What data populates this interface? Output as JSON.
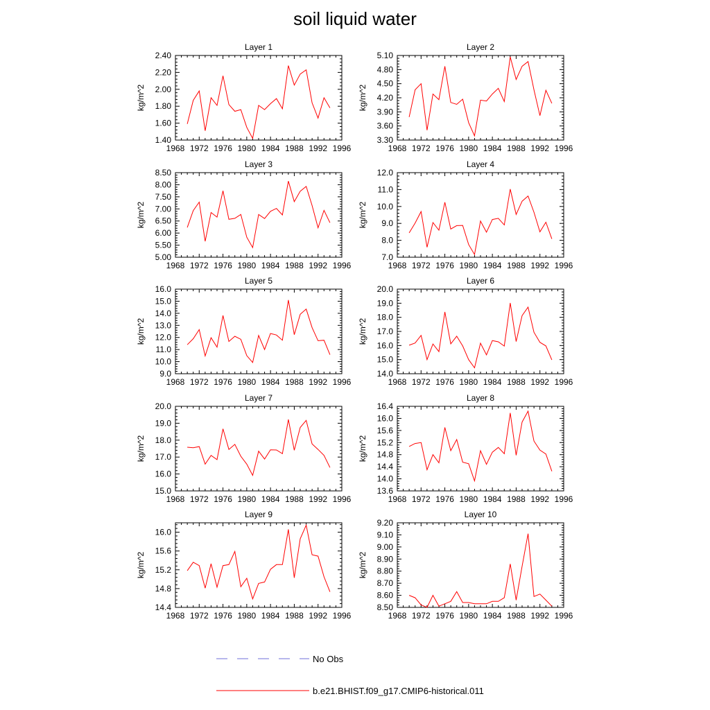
{
  "title": "soil liquid water",
  "legend": {
    "items": [
      {
        "label": "No Obs",
        "style": "dashed",
        "color": "#6f6fd8"
      },
      {
        "label": "b.e21.BHIST.f09_g17.CMIP6-historical.011",
        "style": "solid",
        "color": "#ff0000"
      }
    ]
  },
  "chart_data": [
    {
      "type": "line",
      "title": "Layer 1",
      "ylabel": "kg/m^2",
      "xlim": [
        1968,
        1996
      ],
      "ylim": [
        1.4,
        2.4
      ],
      "xticks": [
        "1968",
        "1972",
        "1976",
        "1980",
        "1984",
        "1988",
        "1992",
        "1996"
      ],
      "yticks": [
        "1.40",
        "1.60",
        "1.80",
        "2.00",
        "2.20",
        "2.40"
      ],
      "series": [
        {
          "x": [
            1970,
            1971,
            1972,
            1973,
            1974,
            1975,
            1976,
            1977,
            1978,
            1979,
            1980,
            1981,
            1982,
            1983,
            1984,
            1985,
            1986,
            1987,
            1988,
            1989,
            1990,
            1991,
            1992,
            1993,
            1994
          ],
          "values": [
            1.59,
            1.87,
            1.98,
            1.51,
            1.9,
            1.81,
            2.16,
            1.82,
            1.74,
            1.76,
            1.55,
            1.42,
            1.81,
            1.76,
            1.83,
            1.89,
            1.77,
            2.28,
            2.05,
            2.18,
            2.23,
            1.84,
            1.66,
            1.9,
            1.78
          ]
        }
      ]
    },
    {
      "type": "line",
      "title": "Layer 2",
      "ylabel": "kg/m^2",
      "xlim": [
        1968,
        1996
      ],
      "ylim": [
        3.3,
        5.1
      ],
      "xticks": [
        "1968",
        "1972",
        "1976",
        "1980",
        "1984",
        "1988",
        "1992",
        "1996"
      ],
      "yticks": [
        "3.30",
        "3.60",
        "3.90",
        "4.20",
        "4.50",
        "4.80",
        "5.10"
      ],
      "series": [
        {
          "x": [
            1970,
            1971,
            1972,
            1973,
            1974,
            1975,
            1976,
            1977,
            1978,
            1979,
            1980,
            1981,
            1982,
            1983,
            1984,
            1985,
            1986,
            1987,
            1988,
            1989,
            1990,
            1991,
            1992,
            1993,
            1994
          ],
          "values": [
            3.79,
            4.37,
            4.5,
            3.51,
            4.28,
            4.16,
            4.87,
            4.1,
            4.06,
            4.17,
            3.67,
            3.39,
            4.15,
            4.13,
            4.28,
            4.4,
            4.12,
            5.07,
            4.59,
            4.87,
            4.97,
            4.37,
            3.82,
            4.36,
            4.08
          ]
        }
      ]
    },
    {
      "type": "line",
      "title": "Layer 3",
      "ylabel": "kg/m^2",
      "xlim": [
        1968,
        1996
      ],
      "ylim": [
        5.0,
        8.5
      ],
      "xticks": [
        "1968",
        "1972",
        "1976",
        "1980",
        "1984",
        "1988",
        "1992",
        "1996"
      ],
      "yticks": [
        "5.00",
        "5.50",
        "6.00",
        "6.50",
        "7.00",
        "7.50",
        "8.00",
        "8.50"
      ],
      "series": [
        {
          "x": [
            1970,
            1971,
            1972,
            1973,
            1974,
            1975,
            1976,
            1977,
            1978,
            1979,
            1980,
            1981,
            1982,
            1983,
            1984,
            1985,
            1986,
            1987,
            1988,
            1989,
            1990,
            1991,
            1992,
            1993,
            1994
          ],
          "values": [
            6.23,
            6.93,
            7.28,
            5.66,
            6.85,
            6.66,
            7.75,
            6.57,
            6.61,
            6.77,
            5.83,
            5.4,
            6.77,
            6.6,
            6.9,
            7.02,
            6.75,
            8.15,
            7.3,
            7.73,
            7.93,
            7.14,
            6.22,
            6.94,
            6.43
          ]
        }
      ]
    },
    {
      "type": "line",
      "title": "Layer 4",
      "ylabel": "kg/m^2",
      "xlim": [
        1968,
        1996
      ],
      "ylim": [
        7.0,
        12.0
      ],
      "xticks": [
        "1968",
        "1972",
        "1976",
        "1980",
        "1984",
        "1988",
        "1992",
        "1996"
      ],
      "yticks": [
        "7.0",
        "8.0",
        "9.0",
        "10.0",
        "11.0",
        "12.0"
      ],
      "series": [
        {
          "x": [
            1970,
            1971,
            1972,
            1973,
            1974,
            1975,
            1976,
            1977,
            1978,
            1979,
            1980,
            1981,
            1982,
            1983,
            1984,
            1985,
            1986,
            1987,
            1988,
            1989,
            1990,
            1991,
            1992,
            1993,
            1994
          ],
          "values": [
            8.44,
            9.02,
            9.7,
            7.59,
            9.05,
            8.6,
            10.25,
            8.67,
            8.87,
            8.88,
            7.75,
            7.16,
            9.14,
            8.48,
            9.23,
            9.3,
            8.91,
            11.03,
            9.53,
            10.31,
            10.62,
            9.66,
            8.5,
            9.07,
            8.08
          ]
        }
      ]
    },
    {
      "type": "line",
      "title": "Layer 5",
      "ylabel": "kg/m^2",
      "xlim": [
        1968,
        1996
      ],
      "ylim": [
        9.0,
        16.0
      ],
      "xticks": [
        "1968",
        "1972",
        "1976",
        "1980",
        "1984",
        "1988",
        "1992",
        "1996"
      ],
      "yticks": [
        "9.0",
        "10.0",
        "11.0",
        "12.0",
        "13.0",
        "14.0",
        "15.0",
        "16.0"
      ],
      "series": [
        {
          "x": [
            1970,
            1971,
            1972,
            1973,
            1974,
            1975,
            1976,
            1977,
            1978,
            1979,
            1980,
            1981,
            1982,
            1983,
            1984,
            1985,
            1986,
            1987,
            1988,
            1989,
            1990,
            1991,
            1992,
            1993,
            1994
          ],
          "values": [
            11.4,
            11.9,
            12.65,
            10.47,
            11.98,
            11.2,
            13.82,
            11.67,
            12.1,
            11.85,
            10.5,
            9.93,
            12.17,
            11.0,
            12.33,
            12.2,
            11.77,
            15.1,
            12.23,
            13.92,
            14.35,
            12.82,
            11.73,
            11.77,
            10.57
          ]
        }
      ]
    },
    {
      "type": "line",
      "title": "Layer 6",
      "ylabel": "kg/m^2",
      "xlim": [
        1968,
        1996
      ],
      "ylim": [
        14.0,
        20.0
      ],
      "xticks": [
        "1968",
        "1972",
        "1976",
        "1980",
        "1984",
        "1988",
        "1992",
        "1996"
      ],
      "yticks": [
        "14.0",
        "15.0",
        "16.0",
        "17.0",
        "18.0",
        "19.0",
        "20.0"
      ],
      "series": [
        {
          "x": [
            1970,
            1971,
            1972,
            1973,
            1974,
            1975,
            1976,
            1977,
            1978,
            1979,
            1980,
            1981,
            1982,
            1983,
            1984,
            1985,
            1986,
            1987,
            1988,
            1989,
            1990,
            1991,
            1992,
            1993,
            1994
          ],
          "values": [
            16.02,
            16.18,
            16.72,
            15.0,
            16.11,
            15.57,
            18.38,
            16.12,
            16.66,
            15.97,
            15.0,
            14.42,
            16.17,
            15.34,
            16.35,
            16.26,
            15.96,
            19.02,
            16.28,
            18.12,
            18.72,
            16.94,
            16.23,
            15.97,
            14.98
          ]
        }
      ]
    },
    {
      "type": "line",
      "title": "Layer 7",
      "ylabel": "kg/m^2",
      "xlim": [
        1968,
        1996
      ],
      "ylim": [
        15.0,
        20.0
      ],
      "xticks": [
        "1968",
        "1972",
        "1976",
        "1980",
        "1984",
        "1988",
        "1992",
        "1996"
      ],
      "yticks": [
        "15.0",
        "16.0",
        "17.0",
        "18.0",
        "19.0",
        "20.0"
      ],
      "series": [
        {
          "x": [
            1970,
            1971,
            1972,
            1973,
            1974,
            1975,
            1976,
            1977,
            1978,
            1979,
            1980,
            1981,
            1982,
            1983,
            1984,
            1985,
            1986,
            1987,
            1988,
            1989,
            1990,
            1991,
            1992,
            1993,
            1994
          ],
          "values": [
            17.58,
            17.55,
            17.62,
            16.58,
            17.1,
            16.85,
            18.67,
            17.45,
            17.75,
            17.05,
            16.58,
            15.92,
            17.35,
            16.88,
            17.43,
            17.42,
            17.2,
            19.22,
            17.4,
            18.75,
            19.17,
            17.78,
            17.45,
            17.1,
            16.38
          ]
        }
      ]
    },
    {
      "type": "line",
      "title": "Layer 8",
      "ylabel": "kg/m^2",
      "xlim": [
        1968,
        1996
      ],
      "ylim": [
        13.6,
        16.4
      ],
      "xticks": [
        "1968",
        "1972",
        "1976",
        "1980",
        "1984",
        "1988",
        "1992",
        "1996"
      ],
      "yticks": [
        "13.6",
        "14.0",
        "14.4",
        "14.8",
        "15.2",
        "15.6",
        "16.0",
        "16.4"
      ],
      "series": [
        {
          "x": [
            1970,
            1971,
            1972,
            1973,
            1974,
            1975,
            1976,
            1977,
            1978,
            1979,
            1980,
            1981,
            1982,
            1983,
            1984,
            1985,
            1986,
            1987,
            1988,
            1989,
            1990,
            1991,
            1992,
            1993,
            1994
          ],
          "values": [
            15.07,
            15.17,
            15.2,
            14.3,
            14.8,
            14.53,
            15.7,
            14.93,
            15.3,
            14.55,
            14.5,
            13.93,
            14.93,
            14.48,
            14.88,
            15.04,
            14.83,
            16.18,
            14.78,
            15.88,
            16.24,
            15.25,
            14.95,
            14.82,
            14.25
          ]
        }
      ]
    },
    {
      "type": "line",
      "title": "Layer 9",
      "ylabel": "kg/m^2",
      "xlim": [
        1968,
        1996
      ],
      "ylim": [
        14.4,
        16.2
      ],
      "xticks": [
        "1968",
        "1972",
        "1976",
        "1980",
        "1984",
        "1988",
        "1992",
        "1996"
      ],
      "yticks": [
        "14.4",
        "14.8",
        "15.2",
        "15.6",
        "16.0"
      ],
      "series": [
        {
          "x": [
            1970,
            1971,
            1972,
            1973,
            1974,
            1975,
            1976,
            1977,
            1978,
            1979,
            1980,
            1981,
            1982,
            1983,
            1984,
            1985,
            1986,
            1987,
            1988,
            1989,
            1990,
            1991,
            1992,
            1993,
            1994
          ],
          "values": [
            15.18,
            15.36,
            15.29,
            14.81,
            15.33,
            14.83,
            15.29,
            15.31,
            15.59,
            14.84,
            15.02,
            14.58,
            14.91,
            14.94,
            15.21,
            15.31,
            15.31,
            16.06,
            15.03,
            15.86,
            16.15,
            15.52,
            15.49,
            15.05,
            14.73
          ]
        }
      ]
    },
    {
      "type": "line",
      "title": "Layer 10",
      "ylabel": "kg/m^2",
      "xlim": [
        1968,
        1996
      ],
      "ylim": [
        8.5,
        9.2
      ],
      "xticks": [
        "1968",
        "1972",
        "1976",
        "1980",
        "1984",
        "1988",
        "1992",
        "1996"
      ],
      "yticks": [
        "8.50",
        "8.60",
        "8.70",
        "8.80",
        "8.90",
        "9.00",
        "9.10",
        "9.20"
      ],
      "series": [
        {
          "x": [
            1970,
            1971,
            1972,
            1973,
            1974,
            1975,
            1976,
            1977,
            1978,
            1979,
            1980,
            1981,
            1982,
            1983,
            1984,
            1985,
            1986,
            1987,
            1988,
            1989,
            1990,
            1991,
            1992,
            1993,
            1994
          ],
          "values": [
            8.6,
            8.58,
            8.52,
            8.5,
            8.6,
            8.51,
            8.53,
            8.55,
            8.63,
            8.54,
            8.54,
            8.53,
            8.53,
            8.53,
            8.55,
            8.55,
            8.58,
            8.86,
            8.56,
            8.84,
            9.11,
            8.59,
            8.61,
            8.56,
            8.51
          ]
        }
      ]
    }
  ]
}
